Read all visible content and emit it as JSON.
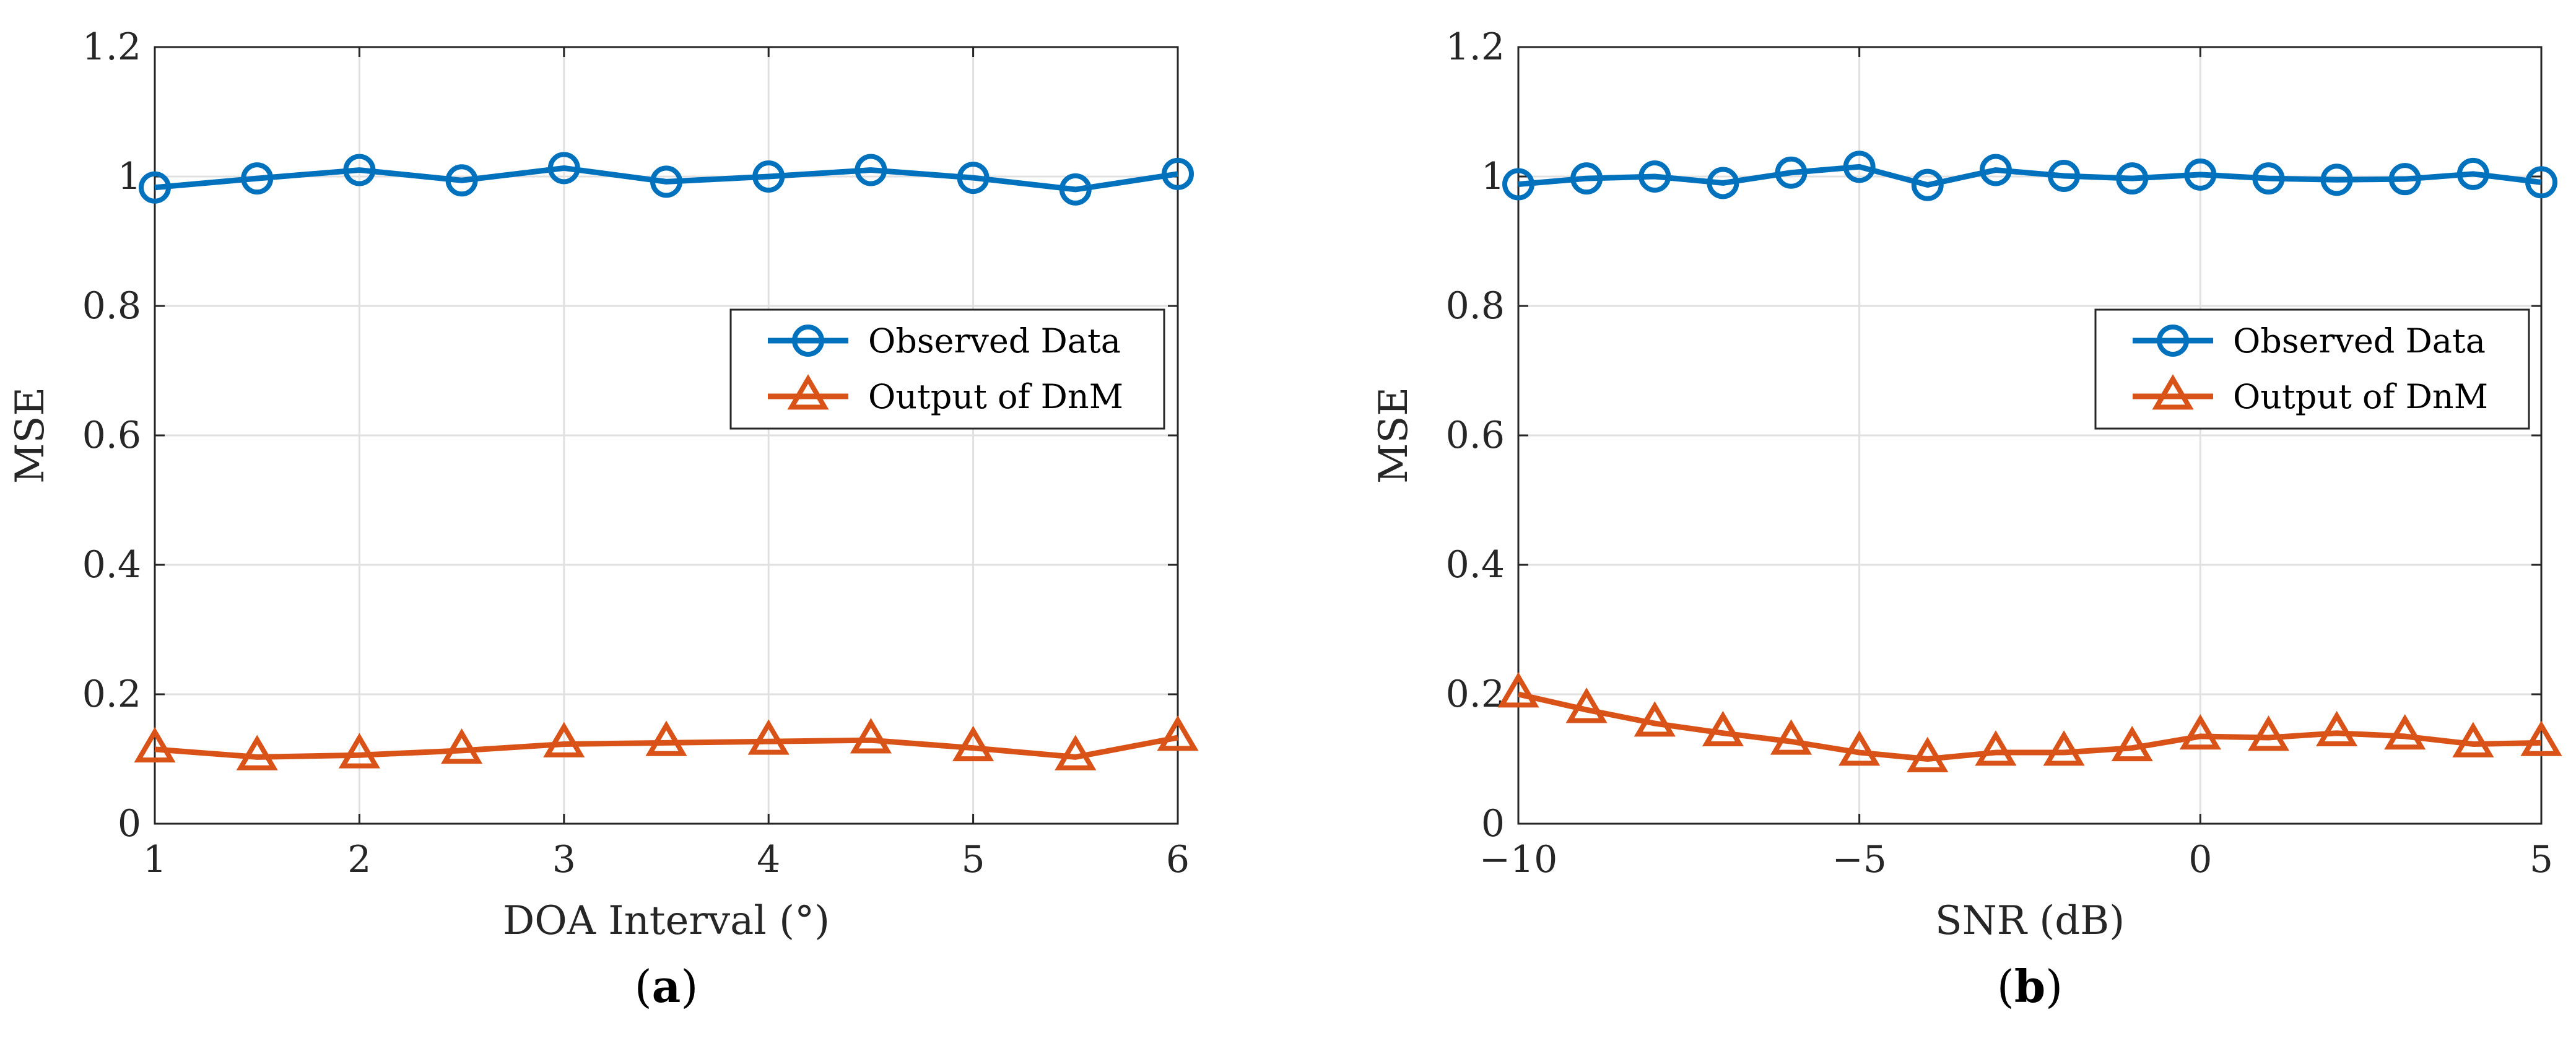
{
  "chart_data": [
    {
      "type": "line",
      "panel_label": "a",
      "xlabel": "DOA Interval (°)",
      "ylabel": "MSE",
      "xlim": [
        1,
        6
      ],
      "ylim": [
        0,
        1.2
      ],
      "xticks": [
        1,
        2,
        3,
        4,
        5,
        6
      ],
      "yticks": [
        0,
        0.2,
        0.4,
        0.6,
        0.8,
        1,
        1.2
      ],
      "xtick_labels": [
        "1",
        "2",
        "3",
        "4",
        "5",
        "6"
      ],
      "ytick_labels": [
        "0",
        "0.2",
        "0.4",
        "0.6",
        "0.8",
        "1",
        "1.2"
      ],
      "grid": true,
      "legend_position": "center-right",
      "x": [
        1,
        1.5,
        2,
        2.5,
        3,
        3.5,
        4,
        4.5,
        5,
        5.5,
        6
      ],
      "series": [
        {
          "name": "Observed Data",
          "marker": "circle",
          "color": "#0072BD",
          "values": [
            0.983,
            0.997,
            1.01,
            0.994,
            1.013,
            0.992,
            1.0,
            1.01,
            0.998,
            0.98,
            1.004
          ]
        },
        {
          "name": "Output of DnM",
          "marker": "triangle",
          "color": "#D95319",
          "values": [
            0.115,
            0.103,
            0.106,
            0.113,
            0.123,
            0.125,
            0.127,
            0.129,
            0.117,
            0.103,
            0.133
          ]
        }
      ]
    },
    {
      "type": "line",
      "panel_label": "b",
      "xlabel": "SNR (dB)",
      "ylabel": "MSE",
      "xlim": [
        -10,
        5
      ],
      "ylim": [
        0,
        1.2
      ],
      "xticks": [
        -10,
        -5,
        0,
        5
      ],
      "yticks": [
        0,
        0.2,
        0.4,
        0.6,
        0.8,
        1,
        1.2
      ],
      "xtick_labels": [
        "−10",
        "−5",
        "0",
        "5"
      ],
      "ytick_labels": [
        "0",
        "0.2",
        "0.4",
        "0.6",
        "0.8",
        "1",
        "1.2"
      ],
      "grid": true,
      "legend_position": "center-right",
      "x": [
        -10,
        -9,
        -8,
        -7,
        -6,
        -5,
        -4,
        -3,
        -2,
        -1,
        0,
        1,
        2,
        3,
        4,
        5
      ],
      "series": [
        {
          "name": "Observed Data",
          "marker": "circle",
          "color": "#0072BD",
          "values": [
            0.988,
            0.997,
            1.0,
            0.99,
            1.006,
            1.015,
            0.987,
            1.01,
            1.001,
            0.997,
            1.003,
            0.997,
            0.995,
            0.996,
            1.004,
            0.991
          ]
        },
        {
          "name": "Output of DnM",
          "marker": "triangle",
          "color": "#D95319",
          "values": [
            0.2,
            0.176,
            0.155,
            0.14,
            0.127,
            0.11,
            0.1,
            0.11,
            0.11,
            0.117,
            0.135,
            0.133,
            0.14,
            0.135,
            0.123,
            0.125
          ]
        }
      ]
    }
  ]
}
